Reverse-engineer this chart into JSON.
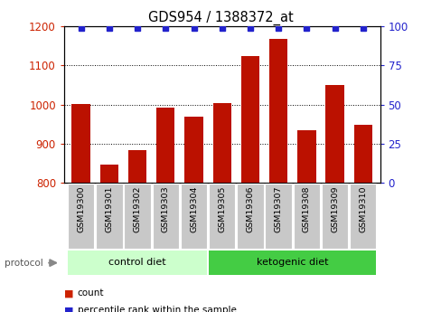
{
  "title": "GDS954 / 1388372_at",
  "samples": [
    "GSM19300",
    "GSM19301",
    "GSM19302",
    "GSM19303",
    "GSM19304",
    "GSM19305",
    "GSM19306",
    "GSM19307",
    "GSM19308",
    "GSM19309",
    "GSM19310"
  ],
  "counts": [
    1002,
    847,
    884,
    993,
    968,
    1003,
    1124,
    1168,
    933,
    1050,
    947
  ],
  "percentile_ranks": [
    99,
    99,
    99,
    99,
    99,
    99,
    99,
    99,
    99,
    99,
    99
  ],
  "ylim_left": [
    800,
    1200
  ],
  "ylim_right": [
    0,
    100
  ],
  "yticks_left": [
    800,
    900,
    1000,
    1100,
    1200
  ],
  "yticks_right": [
    0,
    25,
    50,
    75,
    100
  ],
  "bar_color": "#bb1100",
  "dot_color": "#2222cc",
  "tick_bg": "#c8c8c8",
  "left_tick_color": "#cc2200",
  "right_tick_color": "#2222cc",
  "control_color": "#ccffcc",
  "ketogenic_color": "#44cc44",
  "legend_count_color": "#cc2200",
  "legend_pct_color": "#2222cc",
  "figsize": [
    4.89,
    3.45
  ],
  "dpi": 100
}
